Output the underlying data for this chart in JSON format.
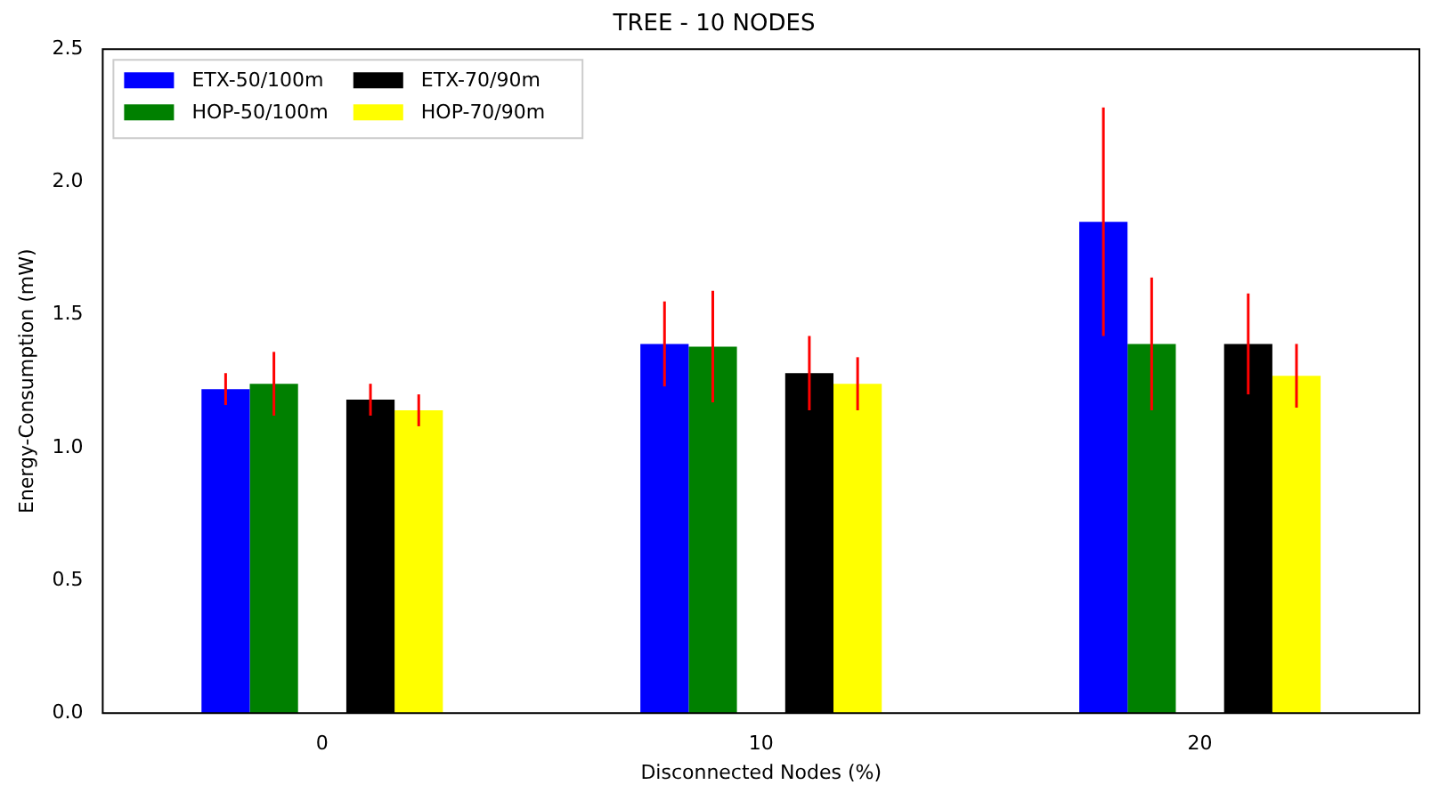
{
  "chart_data": {
    "type": "bar",
    "title": "TREE - 10 NODES",
    "xlabel": "Disconnected Nodes (%)",
    "ylabel": "Energy-Consumption (mW)",
    "categories": [
      "0",
      "10",
      "20"
    ],
    "series": [
      {
        "name": "ETX-50/100m",
        "color": "#0000ff",
        "values": [
          1.22,
          1.39,
          1.85
        ],
        "errors": [
          0.06,
          0.16,
          0.43
        ]
      },
      {
        "name": "HOP-50/100m",
        "color": "#008000",
        "values": [
          1.24,
          1.38,
          1.39
        ],
        "errors": [
          0.12,
          0.21,
          0.25
        ]
      },
      {
        "name": "ETX-70/90m",
        "color": "#000000",
        "values": [
          1.18,
          1.28,
          1.39
        ],
        "errors": [
          0.06,
          0.14,
          0.19
        ]
      },
      {
        "name": "HOP-70/90m",
        "color": "#ffff00",
        "values": [
          1.14,
          1.24,
          1.27
        ],
        "errors": [
          0.06,
          0.1,
          0.12
        ]
      }
    ],
    "ylim": [
      0,
      2.5
    ],
    "yticks": [
      {
        "value": 0,
        "label": "0.0"
      },
      0.5,
      {
        "value": 1,
        "label": "1.0"
      },
      1.5,
      {
        "value": 2,
        "label": "2.0"
      },
      2.5
    ],
    "grid": false,
    "legend": "top left"
  }
}
